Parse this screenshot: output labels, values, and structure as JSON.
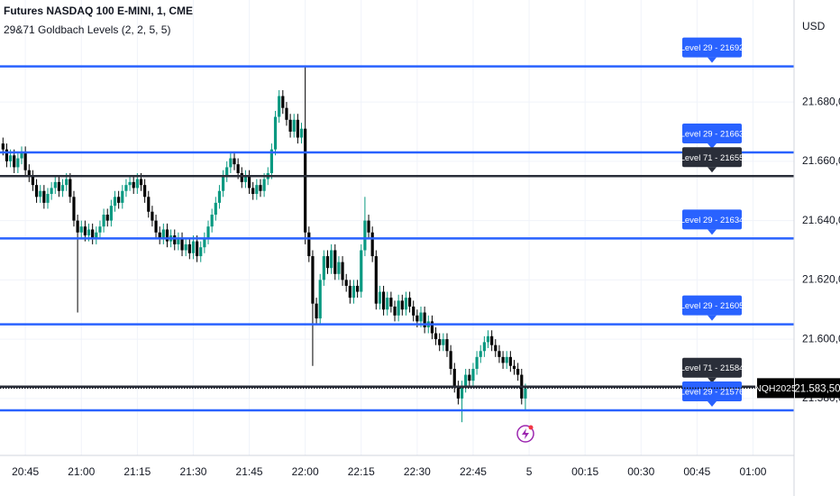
{
  "chart_data": {
    "type": "candlestick",
    "title": "Futures NASDAQ 100 E-MINI, 1, CME",
    "indicator": "29&71 Goldbach Levels (2, 2, 5, 5)",
    "currency": "USD",
    "symbol": "NQH2025",
    "up_color": "#089981",
    "down_color": "#000000",
    "grid": true,
    "x": [
      -6,
      -5,
      -4,
      -3,
      -2,
      -1,
      0,
      1,
      2,
      3,
      4,
      5,
      6,
      7,
      8,
      9,
      10,
      11,
      12,
      13,
      14,
      15,
      16,
      17,
      18,
      19,
      20,
      21,
      22,
      23,
      24,
      25,
      26,
      27,
      28,
      29,
      30,
      31,
      32,
      33,
      34,
      35,
      36,
      37,
      38,
      39,
      40,
      41,
      42,
      43,
      44,
      45,
      46,
      47,
      48,
      49,
      50,
      51,
      52,
      53,
      54,
      55,
      56,
      57,
      58,
      59,
      60,
      61,
      62,
      63,
      64,
      65,
      66,
      67,
      68,
      69,
      70,
      71,
      72,
      73,
      74,
      75,
      76,
      77,
      78,
      79,
      80,
      81,
      82,
      83,
      84,
      85,
      86,
      87,
      88,
      89,
      90,
      91,
      92,
      93,
      94,
      95,
      96,
      97,
      98,
      99,
      100,
      101,
      102,
      103,
      104,
      105,
      106,
      107,
      108,
      109,
      110,
      111,
      112,
      113,
      114,
      115,
      116,
      117,
      118,
      119,
      120,
      121,
      122,
      123,
      124,
      125,
      126,
      127,
      128,
      129,
      130,
      131,
      132,
      133,
      134
    ],
    "open": [
      21666,
      21664,
      21660,
      21662,
      21658,
      21661,
      21663,
      21657,
      21655,
      21652,
      21648,
      21650,
      21646,
      21649,
      21651,
      21653,
      21650,
      21652,
      21654,
      21648,
      21640,
      21636,
      21638,
      21635,
      21637,
      21634,
      21636,
      21638,
      21642,
      21640,
      21645,
      21648,
      21646,
      21650,
      21652,
      21653,
      21651,
      21654,
      21652,
      21648,
      21643,
      21640,
      21636,
      21634,
      21637,
      21633,
      21635,
      21632,
      21634,
      21630,
      21632,
      21629,
      21633,
      21628,
      21631,
      21634,
      21638,
      21642,
      21646,
      21650,
      21655,
      21658,
      21661,
      21659,
      21656,
      21653,
      21655,
      21651,
      21649,
      21652,
      21650,
      21654,
      21656,
      21664,
      21675,
      21682,
      21678,
      21674,
      21670,
      21674,
      21668,
      21671,
      21636,
      21628,
      21612,
      21607,
      21620,
      21628,
      21624,
      21630,
      21622,
      21626,
      21620,
      21618,
      21614,
      21618,
      21616,
      21630,
      21640,
      21636,
      21628,
      21612,
      21616,
      21610,
      21614,
      21611,
      21608,
      21613,
      21610,
      21614,
      21611,
      21608,
      21606,
      21609,
      21604,
      21606,
      21602,
      21600,
      21598,
      21600,
      21596,
      21590,
      21584,
      21580,
      21584,
      21588,
      21586,
      21590,
      21594,
      21596,
      21599,
      21601,
      21598,
      21596,
      21594,
      21592,
      21594,
      21591,
      21590,
      21588,
      21580
    ],
    "high": [
      21668,
      21666,
      21664,
      21664,
      21663,
      21665,
      21665,
      21659,
      21657,
      21654,
      21652,
      21652,
      21651,
      21653,
      21655,
      21655,
      21654,
      21656,
      21656,
      21650,
      21642,
      21640,
      21640,
      21639,
      21639,
      21638,
      21640,
      21644,
      21644,
      21647,
      21650,
      21650,
      21652,
      21654,
      21655,
      21655,
      21656,
      21656,
      21654,
      21650,
      21645,
      21642,
      21638,
      21639,
      21639,
      21637,
      21637,
      21636,
      21636,
      21634,
      21634,
      21635,
      21635,
      21633,
      21636,
      21640,
      21644,
      21648,
      21652,
      21657,
      21660,
      21663,
      21663,
      21661,
      21658,
      21657,
      21657,
      21653,
      21654,
      21654,
      21656,
      21658,
      21666,
      21677,
      21684,
      21684,
      21680,
      21676,
      21676,
      21676,
      21673,
      21692,
      21638,
      21630,
      21614,
      21622,
      21630,
      21630,
      21632,
      21632,
      21628,
      21628,
      21622,
      21620,
      21620,
      21620,
      21632,
      21648,
      21642,
      21638,
      21630,
      21618,
      21618,
      21616,
      21616,
      21613,
      21615,
      21615,
      21616,
      21616,
      21613,
      21610,
      21611,
      21611,
      21608,
      21608,
      21604,
      21602,
      21602,
      21602,
      21598,
      21592,
      21586,
      21586,
      21590,
      21590,
      21592,
      21596,
      21598,
      21601,
      21603,
      21603,
      21600,
      21598,
      21596,
      21596,
      21596,
      21593,
      21592,
      21590,
      21585
    ],
    "low": [
      21662,
      21658,
      21658,
      21656,
      21656,
      21659,
      21655,
      21653,
      21650,
      21646,
      21646,
      21644,
      21644,
      21647,
      21649,
      21648,
      21648,
      21650,
      21646,
      21638,
      21609,
      21634,
      21633,
      21633,
      21632,
      21632,
      21634,
      21636,
      21638,
      21638,
      21643,
      21644,
      21644,
      21648,
      21650,
      21649,
      21649,
      21650,
      21646,
      21641,
      21638,
      21634,
      21632,
      21632,
      21631,
      21631,
      21630,
      21630,
      21628,
      21628,
      21627,
      21627,
      21626,
      21626,
      21629,
      21632,
      21636,
      21640,
      21644,
      21648,
      21653,
      21656,
      21657,
      21654,
      21651,
      21651,
      21649,
      21647,
      21647,
      21648,
      21648,
      21652,
      21654,
      21662,
      21673,
      21676,
      21672,
      21668,
      21668,
      21666,
      21666,
      21632,
      21626,
      21591,
      21605,
      21605,
      21618,
      21622,
      21622,
      21620,
      21620,
      21618,
      21616,
      21612,
      21612,
      21614,
      21614,
      21628,
      21634,
      21626,
      21610,
      21610,
      21608,
      21608,
      21609,
      21606,
      21606,
      21608,
      21608,
      21609,
      21606,
      21604,
      21604,
      21602,
      21602,
      21600,
      21598,
      21596,
      21596,
      21594,
      21588,
      21582,
      21578,
      21572,
      21582,
      21584,
      21584,
      21588,
      21592,
      21594,
      21597,
      21596,
      21594,
      21592,
      21590,
      21590,
      21589,
      21588,
      21586,
      21578,
      21576
    ],
    "close": [
      21664,
      21660,
      21662,
      21658,
      21661,
      21663,
      21657,
      21655,
      21652,
      21648,
      21650,
      21646,
      21649,
      21651,
      21653,
      21650,
      21652,
      21654,
      21648,
      21640,
      21636,
      21638,
      21635,
      21637,
      21634,
      21636,
      21638,
      21642,
      21640,
      21645,
      21648,
      21646,
      21650,
      21652,
      21653,
      21651,
      21654,
      21652,
      21648,
      21643,
      21640,
      21636,
      21634,
      21637,
      21633,
      21635,
      21632,
      21634,
      21630,
      21632,
      21629,
      21633,
      21628,
      21631,
      21634,
      21638,
      21642,
      21646,
      21650,
      21655,
      21658,
      21661,
      21659,
      21656,
      21653,
      21655,
      21651,
      21649,
      21652,
      21650,
      21654,
      21656,
      21664,
      21675,
      21682,
      21678,
      21674,
      21670,
      21674,
      21668,
      21671,
      21636,
      21628,
      21612,
      21607,
      21620,
      21628,
      21624,
      21630,
      21622,
      21626,
      21620,
      21618,
      21614,
      21618,
      21616,
      21630,
      21640,
      21636,
      21628,
      21612,
      21616,
      21610,
      21614,
      21611,
      21608,
      21613,
      21610,
      21614,
      21611,
      21608,
      21606,
      21609,
      21604,
      21606,
      21602,
      21600,
      21598,
      21600,
      21596,
      21590,
      21584,
      21580,
      21584,
      21588,
      21586,
      21590,
      21594,
      21596,
      21599,
      21601,
      21598,
      21596,
      21594,
      21592,
      21594,
      21591,
      21590,
      21588,
      21580,
      21583.5
    ],
    "xlim": [
      -6.8,
      206
    ],
    "xticks": [
      {
        "value": 0,
        "label": "20:45"
      },
      {
        "value": 15,
        "label": "21:00"
      },
      {
        "value": 30,
        "label": "21:15"
      },
      {
        "value": 45,
        "label": "21:30"
      },
      {
        "value": 60,
        "label": "21:45"
      },
      {
        "value": 75,
        "label": "22:00"
      },
      {
        "value": 90,
        "label": "22:15"
      },
      {
        "value": 105,
        "label": "22:30"
      },
      {
        "value": 120,
        "label": "22:45"
      },
      {
        "value": 135,
        "label": "5"
      },
      {
        "value": 150,
        "label": "00:15"
      },
      {
        "value": 165,
        "label": "00:30"
      },
      {
        "value": 180,
        "label": "00:45"
      },
      {
        "value": 195,
        "label": "01:00"
      }
    ],
    "ylim": [
      21560.8,
      21714.4
    ],
    "yticks": [
      {
        "value": 21580,
        "label": "21.580,00"
      },
      {
        "value": 21600,
        "label": "21.600,00"
      },
      {
        "value": 21620,
        "label": "21.620,00"
      },
      {
        "value": 21640,
        "label": "21.640,00"
      },
      {
        "value": 21660,
        "label": "21.660,00"
      },
      {
        "value": 21680,
        "label": "21.680,00"
      }
    ],
    "levels": [
      {
        "label": "Level 29 - 21692",
        "value": 21692,
        "color": "#2962ff"
      },
      {
        "label": "Level 29 - 21663",
        "value": 21663,
        "color": "#2962ff"
      },
      {
        "label": "Level 71 - 21655",
        "value": 21655,
        "color": "#2a2e39"
      },
      {
        "label": "Level 29 - 21634",
        "value": 21634,
        "color": "#2962ff"
      },
      {
        "label": "Level 29 - 21605",
        "value": 21605,
        "color": "#2962ff"
      },
      {
        "label": "Level 71 - 21584",
        "value": 21584,
        "color": "#2a2e39"
      },
      {
        "label": "Level 29 - 21576",
        "value": 21576,
        "color": "#2962ff"
      }
    ],
    "last_price": {
      "value": 21583.5,
      "label": "21.583,50"
    }
  }
}
